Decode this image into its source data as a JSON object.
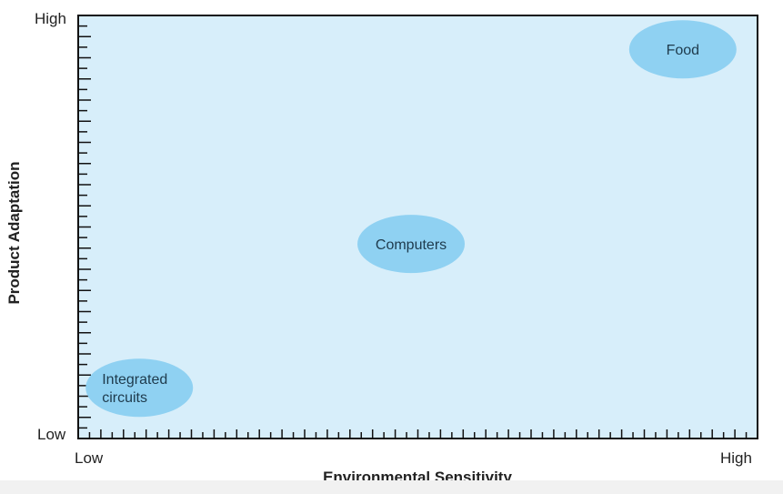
{
  "chart_data": {
    "type": "scatter",
    "title": "",
    "xlabel": "Environmental Sensitivity",
    "ylabel": "Product Adaptation",
    "x_tick_labels": {
      "low": "Low",
      "high": "High"
    },
    "y_tick_labels": {
      "low": "Low",
      "high": "High"
    },
    "xlim": [
      0,
      100
    ],
    "ylim": [
      0,
      100
    ],
    "grid": false,
    "points": [
      {
        "label_lines": [
          "Integrated",
          "circuits"
        ],
        "x": 9,
        "y": 12
      },
      {
        "label_lines": [
          "Computers"
        ],
        "x": 49,
        "y": 46
      },
      {
        "label_lines": [
          "Food"
        ],
        "x": 89,
        "y": 92
      }
    ]
  },
  "colors": {
    "plot_background": "#d7eefa",
    "bubble_fill": "#8fd1f2",
    "axis": "#111111"
  }
}
